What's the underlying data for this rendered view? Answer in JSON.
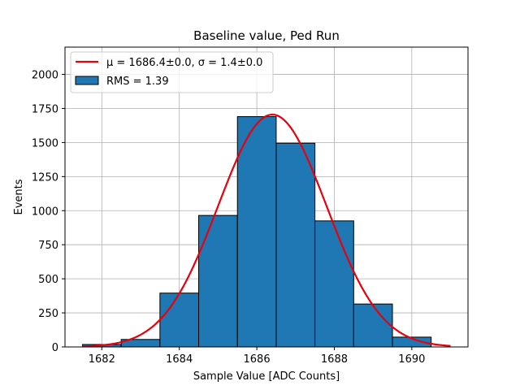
{
  "chart_data": {
    "type": "bar",
    "title": "Baseline value, Ped Run",
    "xlabel": "Sample Value [ADC Counts]",
    "ylabel": "Events",
    "xlim": [
      1681.05,
      1691.45
    ],
    "ylim": [
      0,
      2200
    ],
    "grid": true,
    "xticks": [
      1682,
      1684,
      1686,
      1688,
      1690
    ],
    "yticks": [
      0,
      250,
      500,
      750,
      1000,
      1250,
      1500,
      1750,
      2000
    ],
    "histogram": {
      "name": "RMS = 1.39",
      "color": "#1f77b4",
      "bin_edges": [
        1681.5,
        1682.5,
        1683.5,
        1684.5,
        1685.5,
        1686.5,
        1687.5,
        1688.5,
        1689.5,
        1690.5
      ],
      "counts": [
        18,
        55,
        395,
        965,
        1690,
        1495,
        925,
        315,
        72
      ]
    },
    "fit": {
      "name": "μ = 1686.4±0.0, σ = 1.4±0.0",
      "color": "#e8000b",
      "mu": 1686.4,
      "sigma": 1.4,
      "amplitude": 1705,
      "x_range": [
        1681.5,
        1691.0
      ]
    },
    "legend": {
      "placement": "upper-left",
      "entries": [
        {
          "label": "μ = 1686.4±0.0, σ = 1.4±0.0",
          "kind": "line"
        },
        {
          "label": "RMS = 1.39",
          "kind": "patch"
        }
      ]
    }
  }
}
